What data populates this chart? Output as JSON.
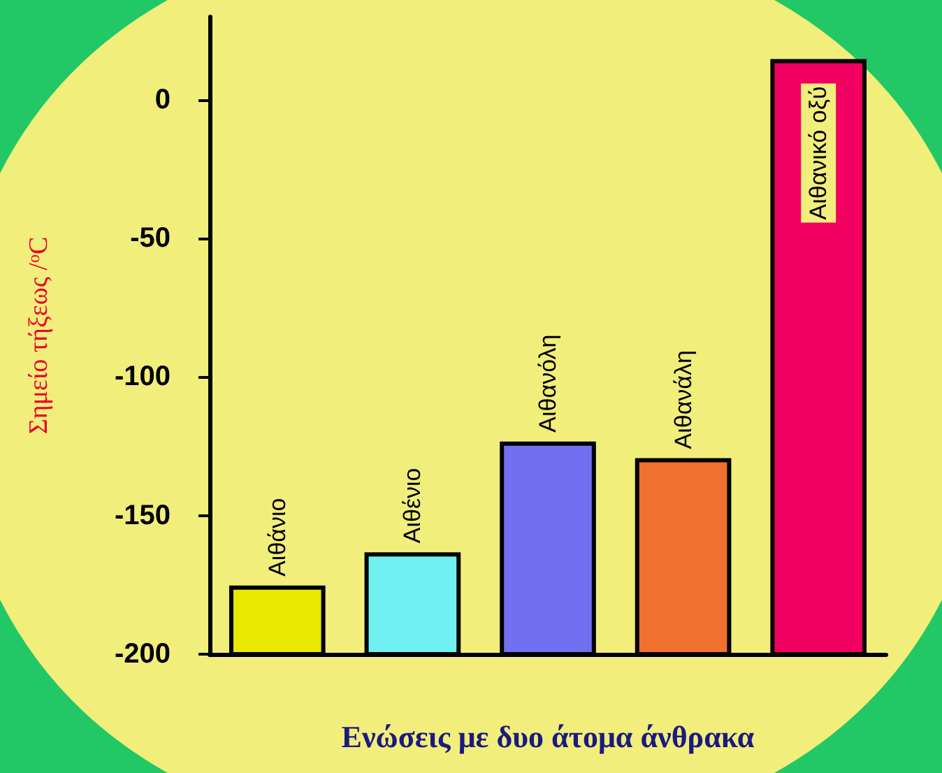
{
  "chart_data": {
    "type": "bar",
    "xlabel": "Ενώσεις με δυο άτομα άνθρακα",
    "ylabel": "Σημείο τήξεως /$^{o}$C",
    "categories": [
      "Αιθάνιο",
      "Αιθένιο",
      "Αιθανόλη",
      "Αιθανάλη",
      "Αιθανικό οξύ"
    ],
    "base": [
      -200,
      -200,
      -200,
      -200,
      -200
    ],
    "values": [
      24,
      36,
      76,
      70,
      214
    ],
    "colors": [
      "#e8e800",
      "#70f0f0",
      "#7070f0",
      "#f07030",
      "#f00060"
    ],
    "ylim": [
      -200,
      30
    ],
    "yticks": [
      -200,
      -150,
      -100,
      -50,
      0
    ],
    "grid": false
  }
}
